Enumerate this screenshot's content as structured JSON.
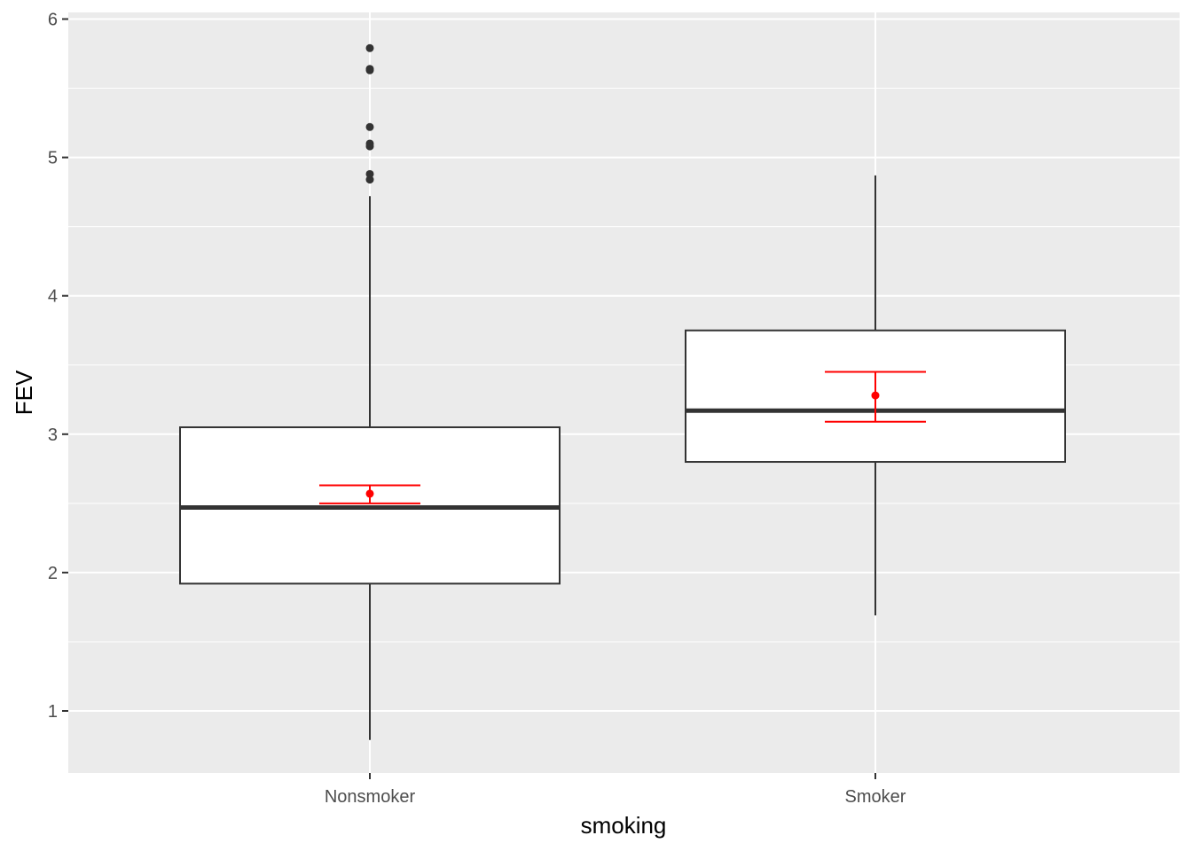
{
  "chart_data": {
    "type": "boxplot",
    "xlabel": "smoking",
    "ylabel": "FEV",
    "ylim": [
      0.55,
      6.1
    ],
    "y_ticks": [
      1,
      2,
      3,
      4,
      5,
      6
    ],
    "y_tick_labels": [
      "1",
      "2",
      "3",
      "4",
      "5",
      "6"
    ],
    "categories": [
      "Nonsmoker",
      "Smoker"
    ],
    "grid": true,
    "boxes": [
      {
        "category": "Nonsmoker",
        "whisker_low": 0.79,
        "q1": 1.92,
        "median": 2.47,
        "q3": 3.05,
        "whisker_high": 4.72,
        "outliers": [
          4.84,
          4.88,
          5.08,
          5.1,
          5.22,
          5.63,
          5.64,
          5.79
        ],
        "mean": 2.57,
        "mean_ci": [
          2.5,
          2.63
        ]
      },
      {
        "category": "Smoker",
        "whisker_low": 1.69,
        "q1": 2.8,
        "median": 3.17,
        "q3": 3.75,
        "whisker_high": 4.87,
        "outliers": [],
        "mean": 3.28,
        "mean_ci": [
          3.09,
          3.45
        ]
      }
    ],
    "colors": {
      "panel": "#ebebeb",
      "grid": "#ffffff",
      "box_line": "#333333",
      "box_fill": "#ffffff",
      "mean": "#ff0000",
      "tick_text": "#4d4d4d",
      "tick_mark": "#333333"
    }
  }
}
